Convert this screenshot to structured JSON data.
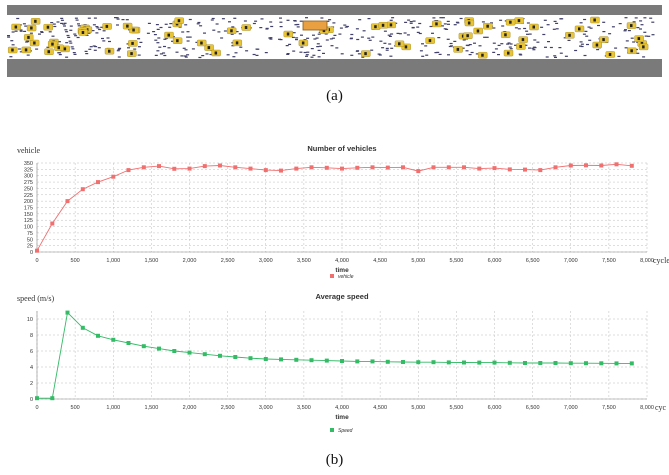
{
  "captions": {
    "a": "(a)",
    "b": "(b)"
  },
  "colors": {
    "road": "#ffffff",
    "shoulder": "#7a7a7a",
    "car": "#e8c437",
    "bus": "#e8a040",
    "vehicle_series": "#f07070",
    "speed_series": "#33bb66"
  },
  "chart_data": [
    {
      "type": "line",
      "title": "Number of vehicles",
      "ylabel": "vehicle",
      "xlabel": "time",
      "x_unit": "cycle",
      "xlim": [
        0,
        8000
      ],
      "ylim": [
        0,
        350
      ],
      "x_ticks": [
        0,
        500,
        1000,
        1500,
        2000,
        2500,
        3000,
        3500,
        4000,
        4500,
        5000,
        5500,
        6000,
        6500,
        7000,
        7500,
        8000
      ],
      "x_tick_labels": [
        "0",
        "500",
        "1,000",
        "1,500",
        "2,000",
        "2,500",
        "3,000",
        "3,500",
        "4,000",
        "4,500",
        "5,000",
        "5,500",
        "6,000",
        "6,500",
        "7,000",
        "7,500",
        "8,000"
      ],
      "y_ticks": [
        0,
        25,
        50,
        75,
        100,
        125,
        150,
        175,
        200,
        225,
        250,
        275,
        300,
        325,
        350
      ],
      "grid": true,
      "legend": "bottom-center",
      "series": [
        {
          "name": "vehicle",
          "x": [
            0,
            200,
            400,
            600,
            800,
            1000,
            1200,
            1400,
            1600,
            1800,
            2000,
            2200,
            2400,
            2600,
            2800,
            3000,
            3200,
            3400,
            3600,
            3800,
            4000,
            4200,
            4400,
            4600,
            4800,
            5000,
            5200,
            5400,
            5600,
            5800,
            6000,
            6200,
            6400,
            6600,
            6800,
            7000,
            7200,
            7400,
            7600,
            7800
          ],
          "values": [
            5,
            112,
            200,
            247,
            275,
            296,
            322,
            333,
            338,
            327,
            328,
            338,
            340,
            333,
            328,
            322,
            320,
            328,
            333,
            331,
            328,
            331,
            333,
            332,
            333,
            318,
            333,
            333,
            333,
            328,
            330,
            325,
            324,
            322,
            333,
            340,
            341,
            340,
            345,
            339
          ]
        }
      ]
    },
    {
      "type": "line",
      "title": "Average speed",
      "ylabel": "speed (m/s)",
      "xlabel": "time",
      "x_unit": "cyc",
      "xlim": [
        0,
        8000
      ],
      "ylim": [
        0,
        11
      ],
      "x_ticks": [
        0,
        500,
        1000,
        1500,
        2000,
        2500,
        3000,
        3500,
        4000,
        4500,
        5000,
        5500,
        6000,
        6500,
        7000,
        7500,
        8000
      ],
      "x_tick_labels": [
        "0",
        "500",
        "1,000",
        "1,500",
        "2,000",
        "2,500",
        "3,000",
        "3,500",
        "4,000",
        "4,500",
        "5,000",
        "5,500",
        "6,000",
        "6,500",
        "7,000",
        "7,500",
        "8,000"
      ],
      "y_ticks": [
        0,
        2,
        4,
        6,
        8,
        10
      ],
      "grid": true,
      "legend": "bottom-center",
      "series": [
        {
          "name": "Speed",
          "x": [
            0,
            200,
            400,
            600,
            800,
            1000,
            1200,
            1400,
            1600,
            1800,
            2000,
            2200,
            2400,
            2600,
            2800,
            3000,
            3200,
            3400,
            3600,
            3800,
            4000,
            4200,
            4400,
            4600,
            4800,
            5000,
            5200,
            5400,
            5600,
            5800,
            6000,
            6200,
            6400,
            6600,
            6800,
            7000,
            7200,
            7400,
            7600,
            7800
          ],
          "values": [
            0.1,
            0.1,
            10.8,
            8.9,
            7.9,
            7.4,
            7.0,
            6.6,
            6.3,
            6.0,
            5.8,
            5.6,
            5.4,
            5.25,
            5.1,
            5.0,
            4.95,
            4.9,
            4.85,
            4.8,
            4.75,
            4.7,
            4.7,
            4.65,
            4.62,
            4.6,
            4.6,
            4.58,
            4.56,
            4.55,
            4.55,
            4.52,
            4.5,
            4.5,
            4.5,
            4.48,
            4.48,
            4.46,
            4.45,
            4.45
          ]
        }
      ]
    }
  ]
}
